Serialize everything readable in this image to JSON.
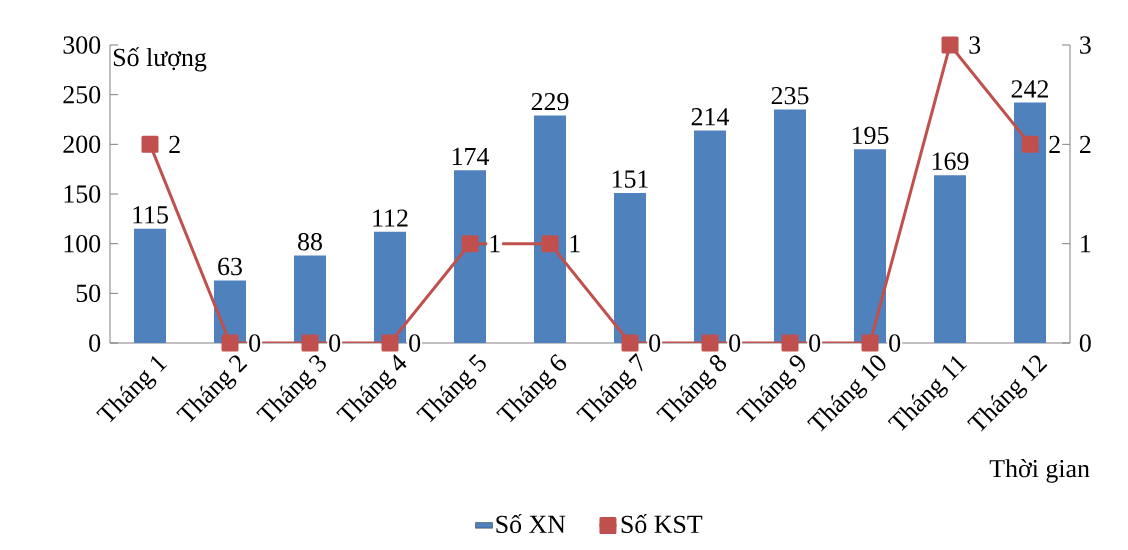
{
  "chart_data": {
    "type": "bar",
    "categories": [
      "Tháng 1",
      "Tháng 2",
      "Tháng 3",
      "Tháng 4",
      "Tháng 5",
      "Tháng 6",
      "Tháng 7",
      "Tháng 8",
      "Tháng 9",
      "Tháng 10",
      "Tháng 11",
      "Tháng 12"
    ],
    "xlabel": "Thời gian",
    "ylabel": "Số lượng",
    "ylim": [
      0,
      300
    ],
    "yticks": [
      0,
      50,
      100,
      150,
      200,
      250,
      300
    ],
    "y2lim": [
      0,
      3
    ],
    "y2ticks": [
      0,
      1,
      2,
      3
    ],
    "grid": false,
    "legend": "bottom",
    "series": [
      {
        "name": "Số XN",
        "type": "bar",
        "color": "#4f81bd",
        "values": [
          115,
          63,
          88,
          112,
          174,
          229,
          151,
          214,
          235,
          195,
          169,
          242
        ],
        "value_labels": [
          "115",
          "63",
          "88",
          "112",
          "174",
          "229",
          "151",
          "214",
          "235",
          "195",
          "169",
          "242"
        ]
      },
      {
        "name": "Số KST",
        "type": "line",
        "axis": "y2",
        "color": "#c0504d",
        "marker": "square",
        "line_style": "solid",
        "values": [
          2,
          0,
          0,
          0,
          1,
          1,
          0,
          0,
          0,
          0,
          3,
          2
        ],
        "value_labels": [
          "2",
          "0",
          "0",
          "0",
          "1",
          "1",
          "0",
          "0",
          "0",
          "0",
          "3",
          "2"
        ]
      }
    ]
  }
}
